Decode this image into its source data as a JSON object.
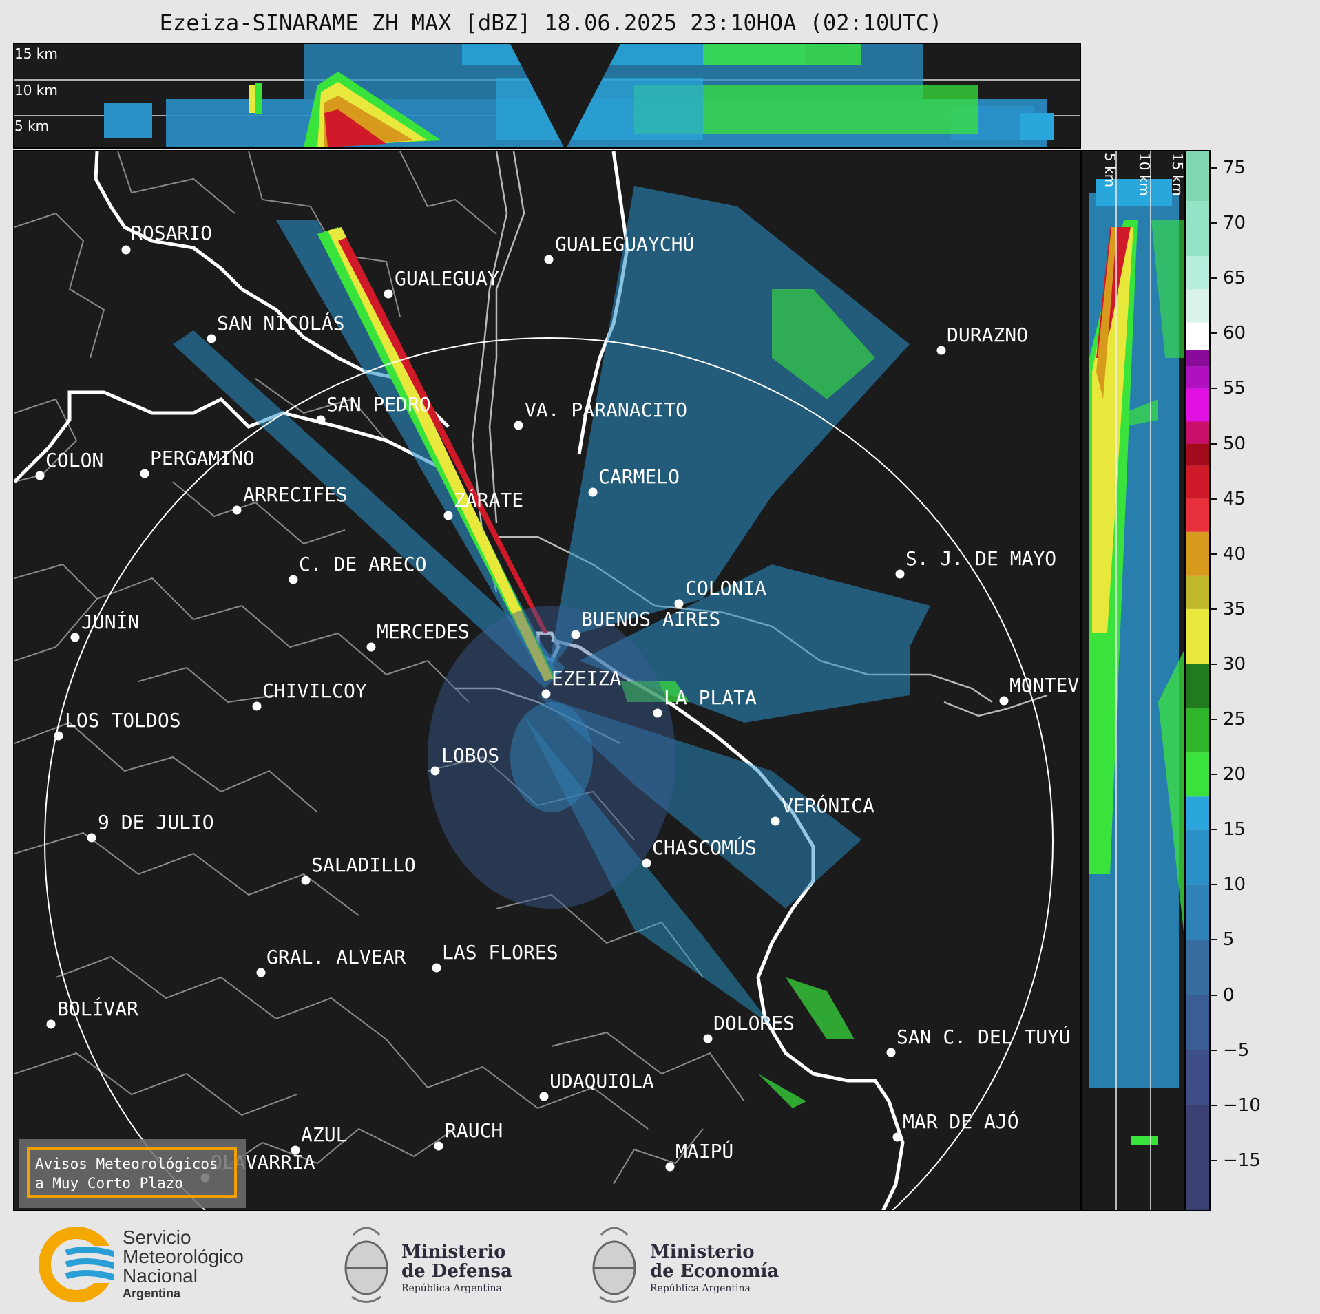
{
  "title": "Ezeiza-SINARAME ZH MAX [dBZ] 18.06.2025 23:10HOA (02:10UTC)",
  "top_panel": {
    "km_labels": [
      "15 km",
      "10 km",
      "5 km"
    ]
  },
  "side_panel": {
    "km_labels": [
      "5 km",
      "10 km",
      "15 km"
    ]
  },
  "colorbar": {
    "unit": "dBZ",
    "ticks": [
      "75",
      "70",
      "65",
      "60",
      "55",
      "50",
      "45",
      "40",
      "35",
      "30",
      "25",
      "20",
      "15",
      "10",
      "5",
      "0",
      "−5",
      "−10",
      "−15"
    ],
    "min": -19.5,
    "max": 76.5,
    "stops": [
      {
        "from": -19.5,
        "color": "#3b3f72"
      },
      {
        "from": -10,
        "color": "#3d4f86"
      },
      {
        "from": -5,
        "color": "#3a5e94"
      },
      {
        "from": 0,
        "color": "#366d9e"
      },
      {
        "from": 5,
        "color": "#2f82b5"
      },
      {
        "from": 10,
        "color": "#2a90c8"
      },
      {
        "from": 15,
        "color": "#29a6dc"
      },
      {
        "from": 18,
        "color": "#39e33c"
      },
      {
        "from": 22,
        "color": "#2fb52a"
      },
      {
        "from": 26,
        "color": "#217a1e"
      },
      {
        "from": 30,
        "color": "#e8e83c"
      },
      {
        "from": 35,
        "color": "#c0b82a"
      },
      {
        "from": 38,
        "color": "#d79a1c"
      },
      {
        "from": 42,
        "color": "#e8303c"
      },
      {
        "from": 45,
        "color": "#d01a2a"
      },
      {
        "from": 48,
        "color": "#a00a1a"
      },
      {
        "from": 50,
        "color": "#c8106a"
      },
      {
        "from": 52,
        "color": "#e010e0"
      },
      {
        "from": 55,
        "color": "#b010c0"
      },
      {
        "from": 57,
        "color": "#8a0a9a"
      },
      {
        "from": 58.5,
        "color": "#ffffff"
      },
      {
        "from": 61,
        "color": "#d9f3ea"
      },
      {
        "from": 64,
        "color": "#b6eddc"
      },
      {
        "from": 67,
        "color": "#93e3c6"
      },
      {
        "from": 72,
        "color": "#7fd8b0"
      }
    ]
  },
  "cities": [
    {
      "name": "ROSARIO"
    },
    {
      "name": "GUALEGUAYCHÚ"
    },
    {
      "name": "GUALEGUAY"
    },
    {
      "name": "SAN NICOLÁS"
    },
    {
      "name": "DURAZNO"
    },
    {
      "name": "SAN PEDRO"
    },
    {
      "name": "VA. PARANACITO"
    },
    {
      "name": "COLON"
    },
    {
      "name": "PERGAMINO"
    },
    {
      "name": "CARMELO"
    },
    {
      "name": "ARRECIFES"
    },
    {
      "name": "ZÁRATE"
    },
    {
      "name": "S. J. DE MAYO"
    },
    {
      "name": "C. DE ARECO"
    },
    {
      "name": "COLONIA"
    },
    {
      "name": "JUNÍN"
    },
    {
      "name": "BUENOS AIRES"
    },
    {
      "name": "MERCEDES"
    },
    {
      "name": "EZEIZA"
    },
    {
      "name": "MONTEV"
    },
    {
      "name": "CHIVILCOY"
    },
    {
      "name": "LA PLATA"
    },
    {
      "name": "LOS TOLDOS"
    },
    {
      "name": "LOBOS"
    },
    {
      "name": "VERÓNICA"
    },
    {
      "name": "9 DE JULIO"
    },
    {
      "name": "CHASCOMÚS"
    },
    {
      "name": "SALADILLO"
    },
    {
      "name": "GRAL. ALVEAR"
    },
    {
      "name": "LAS FLORES"
    },
    {
      "name": "BOLÍVAR"
    },
    {
      "name": "DOLORES"
    },
    {
      "name": "SAN C. DEL TUYÚ"
    },
    {
      "name": "UDAQUIOLA"
    },
    {
      "name": "MAR DE AJÓ"
    },
    {
      "name": "RAUCH"
    },
    {
      "name": "AZUL"
    },
    {
      "name": "MAIPÚ"
    },
    {
      "name": "OLAVARRÍA"
    }
  ],
  "avisos": {
    "line1": "Avisos Meteorológicos",
    "line2": "a Muy Corto Plazo"
  },
  "logos": {
    "smn": {
      "line1": "Servicio",
      "line2": "Meteorológico",
      "line3": "Nacional",
      "line4": "Argentina",
      "colors": [
        "#f5a800",
        "#2a9fd6"
      ]
    },
    "defensa": {
      "line1": "Ministerio",
      "line2": "de Defensa",
      "line3": "República Argentina"
    },
    "economia": {
      "line1": "Ministerio",
      "line2": "de Economía",
      "line3": "República Argentina"
    }
  }
}
